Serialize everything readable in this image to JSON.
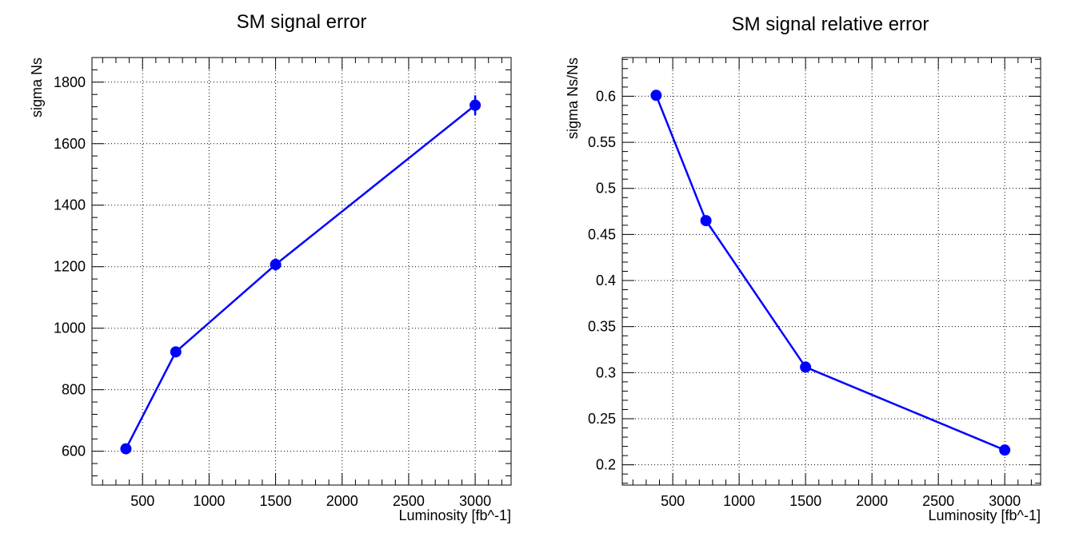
{
  "chart_data": [
    {
      "type": "line",
      "title": "SM signal error",
      "xlabel": "Luminosity [fb^-1]",
      "ylabel": "sigma Ns",
      "xlim": [
        120,
        3270
      ],
      "ylim": [
        490,
        1880
      ],
      "xticks": [
        500,
        1000,
        1500,
        2000,
        2500,
        3000
      ],
      "xtick_labels": [
        "500",
        "1000",
        "1500",
        "2000",
        "2500",
        "3000"
      ],
      "yticks": [
        600,
        800,
        1000,
        1200,
        1400,
        1600,
        1800
      ],
      "ytick_labels": [
        "600",
        "800",
        "1000",
        "1200",
        "1400",
        "1600",
        "1800"
      ],
      "grid": true,
      "series": [
        {
          "x": [
            375,
            750,
            1500,
            3000
          ],
          "y": [
            608,
            923,
            1207,
            1725
          ],
          "yerr": [
            5,
            8,
            20,
            32
          ],
          "color": "#0000ff"
        }
      ]
    },
    {
      "type": "line",
      "title": "SM signal relative error",
      "xlabel": "Luminosity [fb^-1]",
      "ylabel": "sigma Ns/Ns",
      "xlim": [
        120,
        3270
      ],
      "ylim": [
        0.178,
        0.642
      ],
      "xticks": [
        500,
        1000,
        1500,
        2000,
        2500,
        3000
      ],
      "xtick_labels": [
        "500",
        "1000",
        "1500",
        "2000",
        "2500",
        "3000"
      ],
      "yticks": [
        0.2,
        0.25,
        0.3,
        0.35,
        0.4,
        0.45,
        0.5,
        0.55,
        0.6
      ],
      "ytick_labels": [
        "0.2",
        "0.25",
        "0.3",
        "0.35",
        "0.4",
        "0.45",
        "0.5",
        "0.55",
        "0.6"
      ],
      "grid": true,
      "series": [
        {
          "x": [
            375,
            750,
            1500,
            3000
          ],
          "y": [
            0.601,
            0.465,
            0.306,
            0.216
          ],
          "yerr": [
            0,
            0,
            0,
            0
          ],
          "color": "#0000ff"
        }
      ]
    }
  ]
}
